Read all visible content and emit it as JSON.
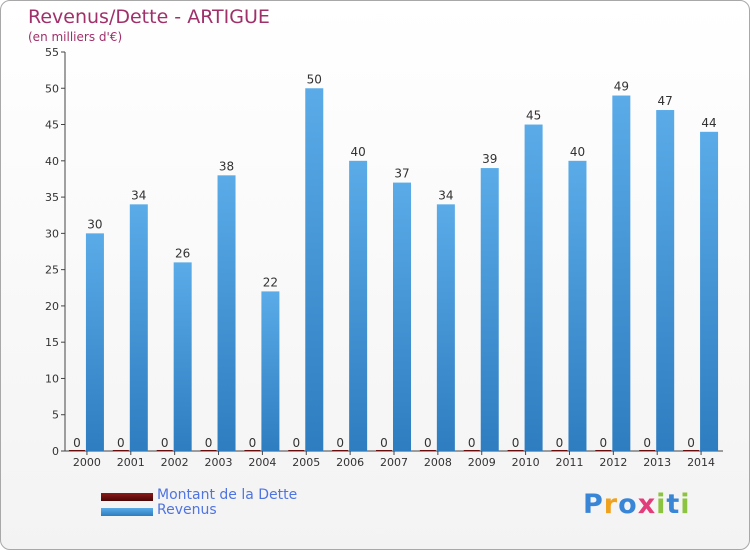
{
  "header": {
    "title": "Revenus/Dette - ARTIGUE",
    "subtitle": "(en milliers d'€)"
  },
  "legend": {
    "items": [
      {
        "label": "Montant de la Dette",
        "color": "#6b0c0c"
      },
      {
        "label": "Revenus",
        "color": "#4f9fe0"
      }
    ]
  },
  "logo": {
    "letters": [
      "P",
      "r",
      "o",
      "x",
      "i",
      "t",
      "i"
    ],
    "colors": [
      "#3a86d6",
      "#f0a21d",
      "#3a86d6",
      "#e23d7a",
      "#8dc43f",
      "#3a86d6",
      "#8dc43f"
    ]
  },
  "colors": {
    "dette": "#6b0c0c",
    "revenus": "#4f9fe0",
    "revenus_dark": "#2f7dbf",
    "title": "#a0306a"
  },
  "chart_data": {
    "type": "bar",
    "title": "Revenus/Dette - ARTIGUE",
    "subtitle": "(en milliers d'€)",
    "categories": [
      "2000",
      "2001",
      "2002",
      "2003",
      "2004",
      "2005",
      "2006",
      "2007",
      "2008",
      "2009",
      "2010",
      "2011",
      "2012",
      "2013",
      "2014"
    ],
    "series": [
      {
        "name": "Montant de la Dette",
        "values": [
          0,
          0,
          0,
          0,
          0,
          0,
          0,
          0,
          0,
          0,
          0,
          0,
          0,
          0,
          0
        ],
        "color": "#6b0c0c"
      },
      {
        "name": "Revenus",
        "values": [
          30,
          34,
          26,
          38,
          22,
          50,
          40,
          37,
          34,
          39,
          45,
          40,
          49,
          47,
          44
        ],
        "color": "#4f9fe0"
      }
    ],
    "ylim": [
      0,
      55
    ],
    "yticks": [
      0,
      5,
      10,
      15,
      20,
      25,
      30,
      35,
      40,
      45,
      50,
      55
    ],
    "grid": false,
    "legend_position": "bottom-left"
  }
}
